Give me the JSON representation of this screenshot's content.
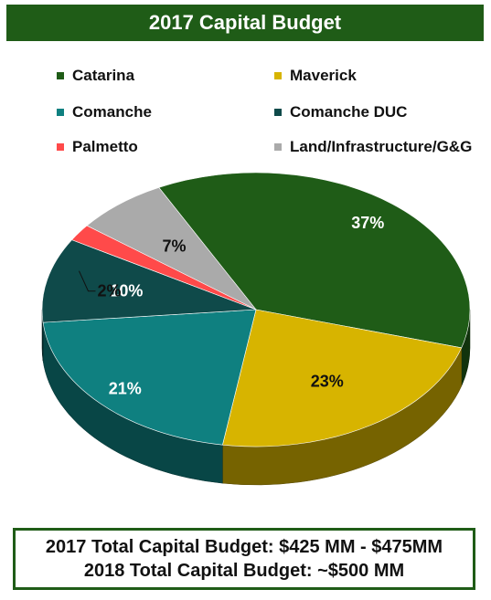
{
  "chart_data": {
    "type": "pie",
    "title": "2017 Capital Budget",
    "categories": [
      "Catarina",
      "Maverick",
      "Comanche",
      "Comanche DUC",
      "Palmetto",
      "Land/Infrastructure/G&G"
    ],
    "values": [
      37,
      23,
      21,
      10,
      2,
      7
    ],
    "value_labels": [
      "37%",
      "23%",
      "21%",
      "10%",
      "2%",
      "7%"
    ],
    "colors": [
      "#1f5c17",
      "#d7b400",
      "#0f8080",
      "#0f4a4a",
      "#ff4a4a",
      "#aaaaaa"
    ],
    "legend_position": "top"
  },
  "footer": {
    "line1": "2017 Total Capital Budget: $425 MM - $475MM",
    "line2": "2018 Total Capital Budget: ~$500 MM"
  }
}
